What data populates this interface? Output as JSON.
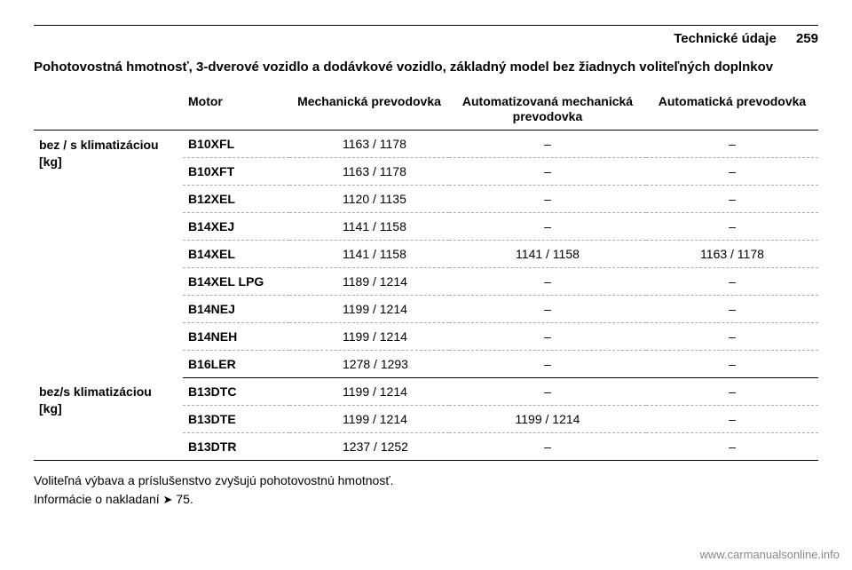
{
  "header": {
    "section": "Technické údaje",
    "page_number": "259"
  },
  "title": "Pohotovostná hmotnosť, 3-dverové vozidlo a dodávkové vozidlo, základný model bez žiadnych voliteľných doplnkov",
  "columns": {
    "motor": "Motor",
    "mech": "Mechanická prevodovka",
    "auto_mech_line1": "Automatizovaná mechanická",
    "auto_mech_line2": "prevodovka",
    "auto": "Automatická prevodovka"
  },
  "groups": [
    {
      "label_line1": "bez / s klimatizáciou",
      "label_line2": "[kg]",
      "rows": [
        {
          "motor": "B10XFL",
          "mech": "1163 / 1178",
          "auto_mech": "–",
          "auto": "–"
        },
        {
          "motor": "B10XFT",
          "mech": "1163 / 1178",
          "auto_mech": "–",
          "auto": "–"
        },
        {
          "motor": "B12XEL",
          "mech": "1120 / 1135",
          "auto_mech": "–",
          "auto": "–"
        },
        {
          "motor": "B14XEJ",
          "mech": "1141 / 1158",
          "auto_mech": "–",
          "auto": "–"
        },
        {
          "motor": "B14XEL",
          "mech": "1141 / 1158",
          "auto_mech": "1141 / 1158",
          "auto": "1163 / 1178"
        },
        {
          "motor": "B14XEL LPG",
          "mech": "1189 / 1214",
          "auto_mech": "–",
          "auto": "–"
        },
        {
          "motor": "B14NEJ",
          "mech": "1199 / 1214",
          "auto_mech": "–",
          "auto": "–"
        },
        {
          "motor": "B14NEH",
          "mech": "1199 / 1214",
          "auto_mech": "–",
          "auto": "–"
        },
        {
          "motor": "B16LER",
          "mech": "1278 / 1293",
          "auto_mech": "–",
          "auto": "–"
        }
      ]
    },
    {
      "label_line1": "bez/s klimatizáciou",
      "label_line2": "[kg]",
      "rows": [
        {
          "motor": "B13DTC",
          "mech": "1199 / 1214",
          "auto_mech": "–",
          "auto": "–"
        },
        {
          "motor": "B13DTE",
          "mech": "1199 / 1214",
          "auto_mech": "1199 / 1214",
          "auto": "–"
        },
        {
          "motor": "B13DTR",
          "mech": "1237 / 1252",
          "auto_mech": "–",
          "auto": "–"
        }
      ]
    }
  ],
  "footnotes": {
    "line1": "Voliteľná výbava a príslušenstvo zvyšujú pohotovostnú hmotnosť.",
    "line2_prefix": "Informácie o nakladaní ",
    "line2_ref_symbol": "➤",
    "line2_ref": "75."
  },
  "footer": {
    "site": "www.carmanualsonline.info"
  },
  "colors": {
    "text": "#000000",
    "footer": "#888888",
    "rule": "#000000",
    "dash_border": "#aaaaaa",
    "background": "#ffffff"
  }
}
